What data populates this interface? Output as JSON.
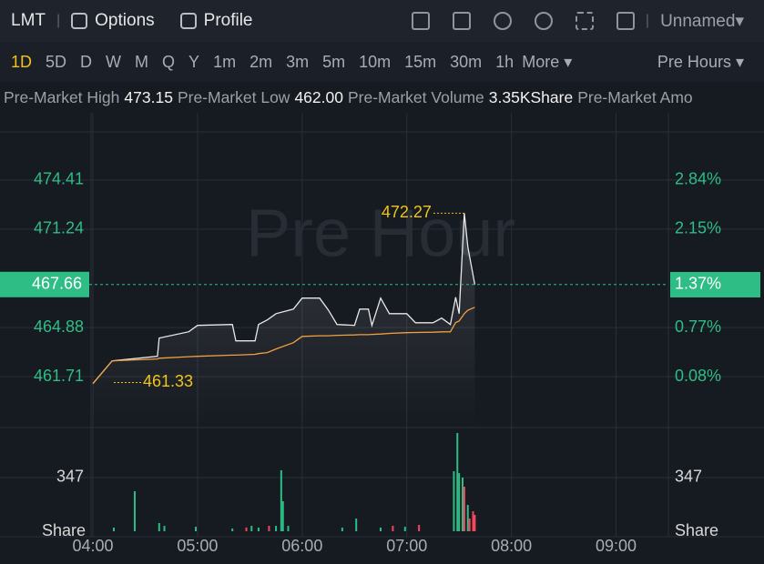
{
  "toolbar": {
    "symbol": "LMT",
    "options": "Options",
    "profile": "Profile",
    "layout": "Unnamed"
  },
  "intervals": {
    "items": [
      "1D",
      "5D",
      "D",
      "W",
      "M",
      "Q",
      "Y",
      "1m",
      "2m",
      "3m",
      "5m",
      "10m",
      "15m",
      "30m",
      "1h"
    ],
    "selected": 0,
    "more": "More",
    "session": "Pre Hours"
  },
  "stats": [
    {
      "label": "Pre-Market High",
      "value": "473.15"
    },
    {
      "label": "Pre-Market Low",
      "value": "462.00"
    },
    {
      "label": "Pre-Market Volume",
      "value": "3.35KShare"
    },
    {
      "label": "Pre-Market Amo"
    }
  ],
  "chart_data": {
    "type": "line",
    "watermark": "Pre Hour",
    "x": [
      "04:00",
      "04:11",
      "04:37",
      "04:38",
      "04:55",
      "05:00",
      "05:20",
      "05:22",
      "05:33",
      "05:35",
      "05:40",
      "05:45",
      "05:55",
      "06:00",
      "06:10",
      "06:15",
      "06:20",
      "06:30",
      "06:33",
      "06:38",
      "06:40",
      "06:45",
      "06:50",
      "07:00",
      "07:05",
      "07:15",
      "07:20",
      "07:25",
      "07:28",
      "07:30",
      "07:33",
      "07:35",
      "07:39"
    ],
    "series": [
      {
        "color": "#e8e8e8",
        "values": [
          461.26,
          462.73,
          463.02,
          464.2,
          464.61,
          465.02,
          465.08,
          464.02,
          464.02,
          465.08,
          465.37,
          465.78,
          466.07,
          466.78,
          466.78,
          466.02,
          465.08,
          465.02,
          466.07,
          466.07,
          465.02,
          466.78,
          465.78,
          465.78,
          465.19,
          465.19,
          465.49,
          465.08,
          466.84,
          465.78,
          472.27,
          470.07,
          467.66
        ]
      },
      {
        "color": "#f0a040",
        "values": [
          461.26,
          462.73,
          462.85,
          462.9,
          463.0,
          463.02,
          463.1,
          463.1,
          463.15,
          463.2,
          463.26,
          463.5,
          463.9,
          464.31,
          464.35,
          464.35,
          464.38,
          464.4,
          464.42,
          464.42,
          464.44,
          464.46,
          464.5,
          464.55,
          464.56,
          464.58,
          464.6,
          464.61,
          465.2,
          465.3,
          465.78,
          466.0,
          466.19
        ]
      }
    ],
    "xlim": [
      "04:00",
      "09:30"
    ],
    "xticks": [
      "04:00",
      "05:00",
      "06:00",
      "07:00",
      "08:00",
      "09:00"
    ],
    "ylim": [
      458.42,
      478.4
    ],
    "yticks": [
      461.71,
      464.88,
      471.24,
      474.41
    ],
    "y2lim": [
      -0.63,
      3.7
    ],
    "y2ticks": [
      {
        "value": 0.08,
        "label": "0.08%"
      },
      {
        "value": 0.77,
        "label": "0.77%"
      },
      {
        "value": 2.15,
        "label": "2.15%"
      },
      {
        "value": 2.84,
        "label": "2.84%"
      }
    ],
    "grid": true,
    "last_price": 467.66,
    "last_change": {
      "value": 1.37,
      "label": "1.37%"
    },
    "last_color": "#2ebd85",
    "annotations": [
      {
        "x": "04:12",
        "value": 461.33,
        "side": "right"
      },
      {
        "x": "07:33",
        "value": 472.27,
        "side": "left"
      }
    ],
    "volume": {
      "unit": "Share",
      "vlim": [
        0,
        670
      ],
      "vticks": [
        347
      ],
      "groups": [
        {
          "color": "#2ebd85",
          "x": [
            "04:12",
            "04:24",
            "04:38",
            "04:41",
            "04:59",
            "05:20",
            "05:31",
            "05:35",
            "05:45",
            "05:48",
            "05:49",
            "05:52",
            "06:23",
            "06:31",
            "06:45",
            "06:59",
            "07:27",
            "07:29",
            "07:30",
            "07:32",
            "07:35"
          ],
          "values": [
            24,
            259,
            53,
            35,
            29,
            18,
            35,
            24,
            35,
            394,
            194,
            35,
            24,
            82,
            24,
            29,
            388,
            635,
            376,
            347,
            170
          ]
        },
        {
          "color": "#f6465d",
          "x": [
            "05:28",
            "05:41",
            "06:52",
            "07:07",
            "07:33",
            "07:36",
            "07:38",
            "07:39"
          ],
          "values": [
            24,
            35,
            35,
            41,
            288,
            82,
            129,
            106
          ]
        }
      ]
    }
  }
}
